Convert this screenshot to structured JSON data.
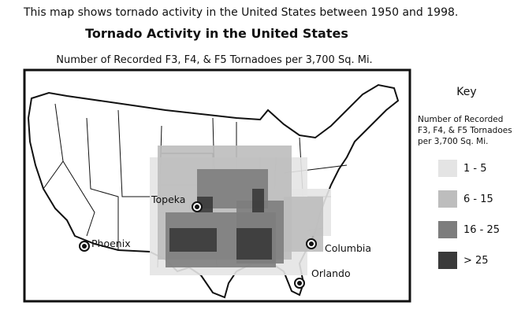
{
  "caption": "This map shows tornado activity in the United States between 1950 and 1998.",
  "map": {
    "title": "Tornado Activity in the United States",
    "subtitle": "Number of Recorded F3, F4, & F5 Tornadoes per 3,700 Sq. Mi.",
    "cities": [
      "Topeka",
      "Phoenix",
      "Columbia",
      "Orlando"
    ]
  },
  "key": {
    "title": "Key",
    "heading": [
      "Number of Recorded",
      "F3, F4, & F5 Tornadoes",
      "per 3,700 Sq. Mi."
    ],
    "items": [
      {
        "label": "1 - 5",
        "color": "#e4e4e4"
      },
      {
        "label": "6 - 15",
        "color": "#bdbdbd"
      },
      {
        "label": "16 - 25",
        "color": "#7d7d7d"
      },
      {
        "label": "> 25",
        "color": "#3a3a3a"
      }
    ]
  }
}
